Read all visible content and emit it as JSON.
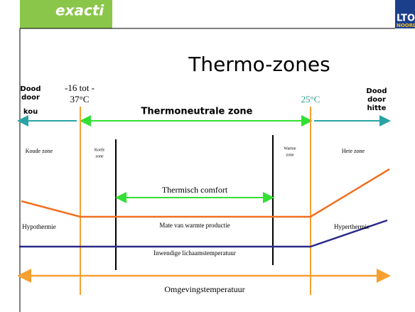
{
  "logo": {
    "name": "exacti"
  },
  "partner_logo": {
    "line1": "LTO",
    "line2": "NOORD"
  },
  "title": "Thermo-zones",
  "left_edge": {
    "line1": "Dood",
    "line2": "door",
    "line3": "kou"
  },
  "lower_critical": {
    "line1": "-16 tot -",
    "line2": "37°C"
  },
  "upper_critical": "25°C",
  "right_edge": {
    "line1": "Dood",
    "line2": "door",
    "line3": "hitte"
  },
  "neutral_zone": "Thermoneutrale zone",
  "zones": {
    "cold": "Koude zone",
    "cool": {
      "line1": "Koele",
      "line2": "zone"
    },
    "warm": {
      "line1": "Warme",
      "line2": "zone"
    },
    "hot": "Hete zone"
  },
  "comfort": "Thermisch comfort",
  "hypothermia": "Hypothermie",
  "heat_production": "Mate van warmte productie",
  "hyperthermia": "Hyperthermie",
  "body_temperature": "Inwendige lichaamstemperatuur",
  "ambient_temperature": "Omgevingstemperatuur"
}
